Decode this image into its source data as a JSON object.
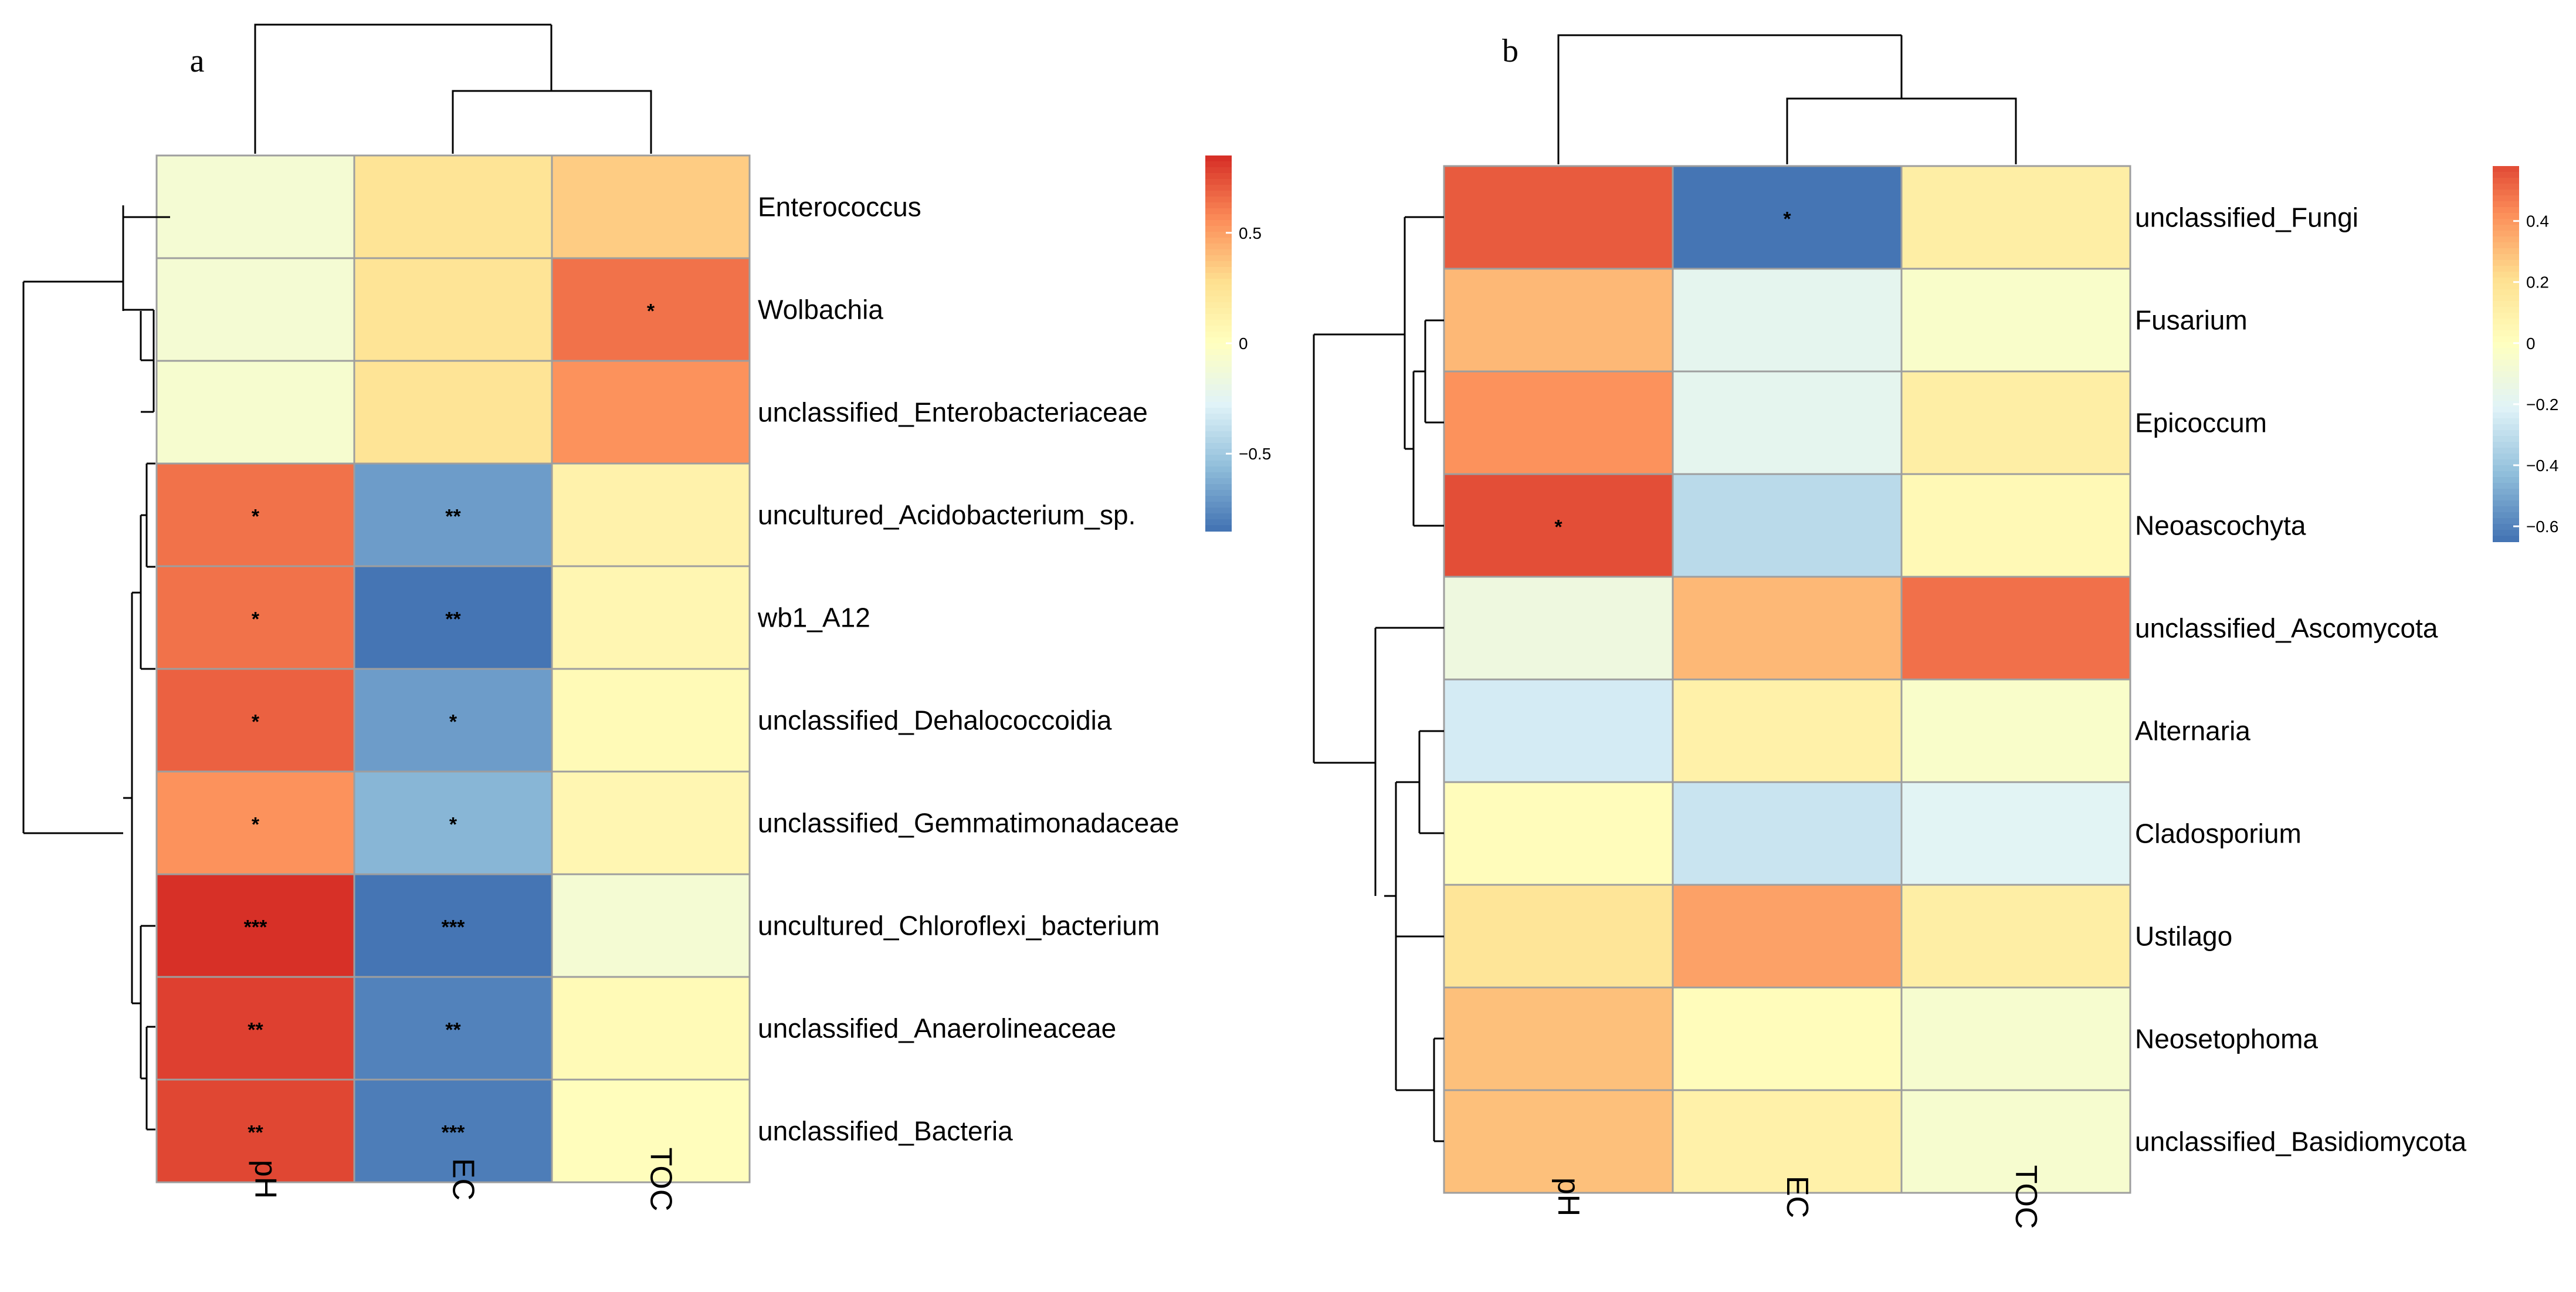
{
  "chart_data": [
    {
      "type": "heatmap",
      "panel_label": "a",
      "columns": [
        "pH",
        "EC",
        "TOC"
      ],
      "rows": [
        "Enterococcus",
        "Wolbachia",
        "unclassified_Enterobacteriaceae",
        "uncultured_Acidobacterium_sp.",
        "wb1_A12",
        "unclassified_Dehalococcoidia",
        "unclassified_Gemmatimonadaceae",
        "uncultured_Chloroflexi_bacterium",
        "unclassified_Anaerolineaceae",
        "unclassified_Bacteria"
      ],
      "values": [
        [
          -0.1,
          0.25,
          0.35
        ],
        [
          -0.1,
          0.25,
          0.65
        ],
        [
          -0.08,
          0.25,
          0.55
        ],
        [
          0.65,
          -0.7,
          0.12
        ],
        [
          0.65,
          -0.85,
          0.08
        ],
        [
          0.7,
          -0.7,
          0.05
        ],
        [
          0.55,
          -0.6,
          0.08
        ],
        [
          0.85,
          -0.85,
          -0.1
        ],
        [
          0.8,
          -0.8,
          0.05
        ],
        [
          0.78,
          -0.82,
          0.02
        ]
      ],
      "significance": [
        [
          "",
          "",
          ""
        ],
        [
          "",
          "",
          "*"
        ],
        [
          "",
          "",
          ""
        ],
        [
          "*",
          "**",
          ""
        ],
        [
          "*",
          "**",
          ""
        ],
        [
          "*",
          "*",
          ""
        ],
        [
          "*",
          "*",
          ""
        ],
        [
          "***",
          "***",
          ""
        ],
        [
          "**",
          "**",
          ""
        ],
        [
          "**",
          "***",
          ""
        ]
      ],
      "color_range": [
        -0.85,
        0.85
      ],
      "legend_ticks": [
        {
          "value": 0.5,
          "label": "0.5"
        },
        {
          "value": 0,
          "label": "0"
        },
        {
          "value": -0.5,
          "label": "−0.5"
        }
      ]
    },
    {
      "type": "heatmap",
      "panel_label": "b",
      "columns": [
        "pH",
        "EC",
        "TOC"
      ],
      "rows": [
        "unclassified_Fungi",
        "Fusarium",
        "Epicoccum",
        "Neoascochyta",
        "unclassified_Ascomycota",
        "Alternaria",
        "Cladosporium",
        "Ustilago",
        "Neosetophoma",
        "unclassified_Basidiomycota"
      ],
      "values": [
        [
          0.55,
          -0.65,
          0.12
        ],
        [
          0.32,
          -0.18,
          -0.04
        ],
        [
          0.42,
          -0.18,
          0.12
        ],
        [
          0.58,
          -0.32,
          0.04
        ],
        [
          -0.12,
          0.32,
          0.5
        ],
        [
          -0.25,
          0.1,
          -0.04
        ],
        [
          0.02,
          -0.28,
          -0.2
        ],
        [
          0.18,
          0.38,
          0.12
        ],
        [
          0.3,
          0.02,
          -0.06
        ],
        [
          0.3,
          0.1,
          -0.06
        ]
      ],
      "significance": [
        [
          "",
          "*",
          ""
        ],
        [
          "",
          "",
          ""
        ],
        [
          "",
          "",
          ""
        ],
        [
          "*",
          "",
          ""
        ],
        [
          "",
          "",
          ""
        ],
        [
          "",
          "",
          ""
        ],
        [
          "",
          "",
          ""
        ],
        [
          "",
          "",
          ""
        ],
        [
          "",
          "",
          ""
        ],
        [
          "",
          "",
          ""
        ]
      ],
      "color_range": [
        -0.65,
        0.58
      ],
      "legend_ticks": [
        {
          "value": 0.4,
          "label": "0.4"
        },
        {
          "value": 0.2,
          "label": "0.2"
        },
        {
          "value": 0,
          "label": "0"
        },
        {
          "value": -0.2,
          "label": "−0.2"
        },
        {
          "value": -0.4,
          "label": "−0.4"
        },
        {
          "value": -0.6,
          "label": "−0.6"
        }
      ]
    }
  ],
  "palette": {
    "low": "#4575b4",
    "mid": "#ffffbf",
    "high": "#d73027",
    "stops": [
      "#4575b4",
      "#91bfdb",
      "#e0f3f8",
      "#ffffbf",
      "#fee090",
      "#fc8d59",
      "#d73027"
    ]
  }
}
